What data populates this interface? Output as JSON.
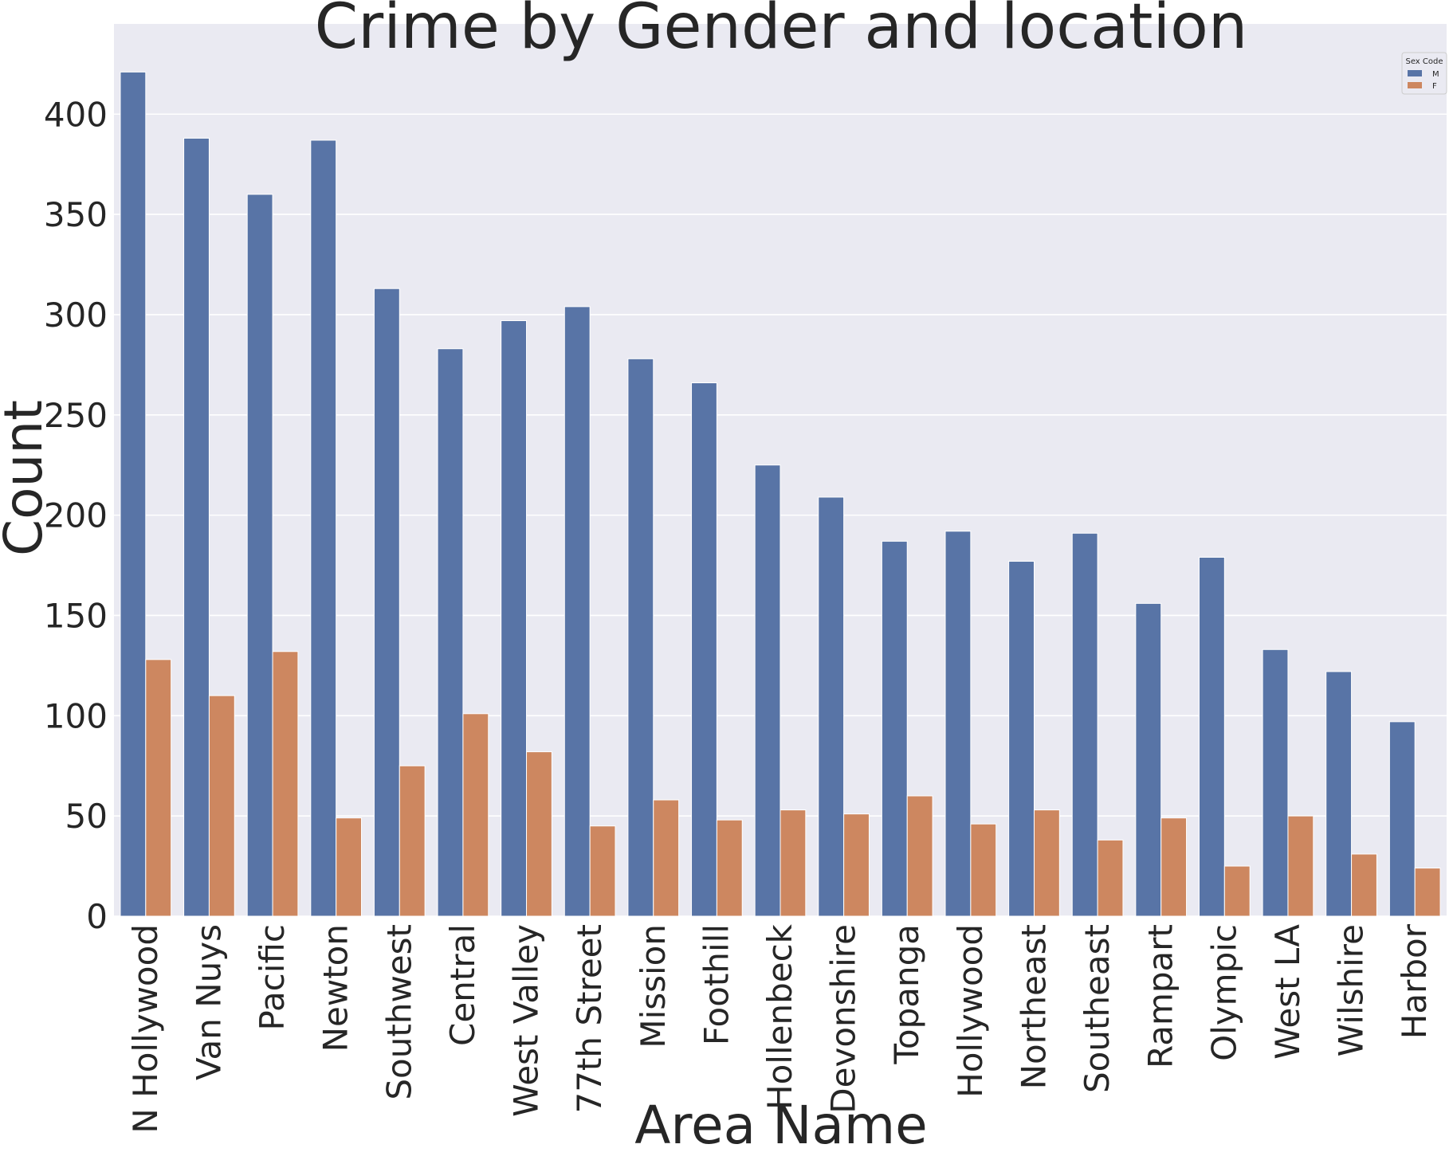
{
  "chart_data": {
    "type": "bar",
    "title": "Crime by Gender and location",
    "xlabel": "Area Name",
    "ylabel": "Count",
    "ylim": [
      0,
      445
    ],
    "yticks": [
      0,
      50,
      100,
      150,
      200,
      250,
      300,
      350,
      400
    ],
    "grid": true,
    "legend": {
      "title": "Sex Code",
      "placement": "top-right"
    },
    "categories": [
      "N Hollywood",
      "Van Nuys",
      "Pacific",
      "Newton",
      "Southwest",
      "Central",
      "West Valley",
      "77th Street",
      "Mission",
      "Foothill",
      "Hollenbeck",
      "Devonshire",
      "Topanga",
      "Hollywood",
      "Northeast",
      "Southeast",
      "Rampart",
      "Olympic",
      "West LA",
      "Wilshire",
      "Harbor"
    ],
    "series": [
      {
        "name": "M",
        "color": "#5874a6",
        "values": [
          421,
          388,
          360,
          387,
          313,
          283,
          297,
          304,
          278,
          266,
          225,
          209,
          187,
          192,
          177,
          191,
          156,
          179,
          133,
          122,
          97
        ]
      },
      {
        "name": "F",
        "color": "#cd8760",
        "values": [
          128,
          110,
          132,
          49,
          75,
          101,
          82,
          45,
          58,
          48,
          53,
          51,
          60,
          46,
          53,
          38,
          49,
          25,
          50,
          31,
          24
        ]
      }
    ],
    "background_color": "#eaeaf2"
  }
}
